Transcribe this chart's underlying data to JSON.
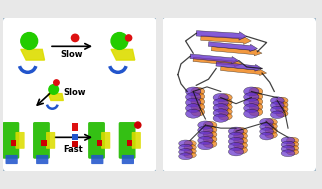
{
  "bg_color": "#e8e8e8",
  "panel_bg": "#ffffff",
  "border_color": "#a0b8c8",
  "left_panel": {
    "green_sphere_color": "#22cc00",
    "red_sphere_color": "#dd1111",
    "yellow_helix_color": "#dddd00",
    "blue_arc_color": "#2255cc",
    "green_helix_color": "#22bb00",
    "red_box_color": "#cc0000",
    "arrow_color": "#222222",
    "slow_label": "Slow",
    "fast_label": "Fast",
    "label_fontsize": 6,
    "label_fontweight": "bold"
  },
  "right_panel": {
    "purple_color": "#6633cc",
    "orange_color": "#ee7700",
    "black_color": "#111111",
    "bg": "#ffffff"
  },
  "figsize": [
    3.22,
    1.89
  ],
  "dpi": 100
}
